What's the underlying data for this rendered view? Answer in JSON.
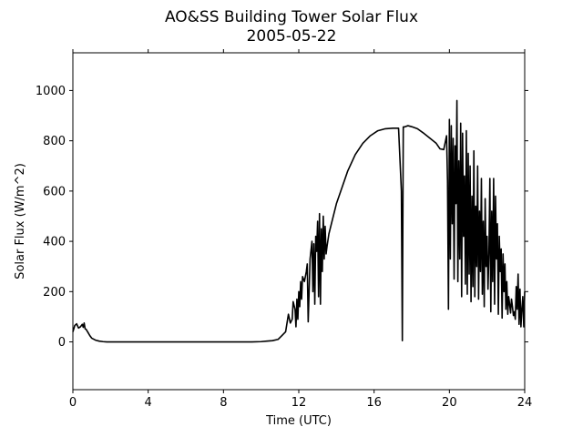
{
  "chart_data": {
    "type": "line",
    "title": "AO&SS Building Tower Solar Flux",
    "subtitle": "2005-05-22",
    "xlabel": "Time (UTC)",
    "ylabel": "Solar Flux (W/m^2)",
    "xlim": [
      0,
      24
    ],
    "ylim": [
      -190,
      1150
    ],
    "xticks": [
      0,
      4,
      8,
      12,
      16,
      20,
      24
    ],
    "yticks": [
      0,
      200,
      400,
      600,
      800,
      1000
    ],
    "grid": false,
    "legend": "none",
    "series": [
      {
        "color": "#000000",
        "x": [
          0.0,
          0.1,
          0.2,
          0.3,
          0.4,
          0.5,
          0.55,
          0.6,
          0.65,
          0.7,
          0.8,
          0.9,
          1.0,
          1.2,
          1.4,
          1.6,
          1.8,
          2.0,
          3.0,
          4.0,
          5.0,
          6.0,
          7.0,
          8.0,
          9.0,
          9.5,
          10.0,
          10.3,
          10.6,
          10.9,
          11.1,
          11.3,
          11.45,
          11.55,
          11.65,
          11.7,
          11.8,
          11.85,
          11.9,
          11.95,
          12.0,
          12.05,
          12.1,
          12.15,
          12.2,
          12.3,
          12.4,
          12.45,
          12.5,
          12.6,
          12.7,
          12.75,
          12.8,
          12.85,
          12.9,
          12.95,
          13.0,
          13.05,
          13.1,
          13.15,
          13.2,
          13.25,
          13.3,
          13.35,
          13.4,
          13.45,
          13.5,
          13.6,
          13.8,
          14.0,
          14.3,
          14.6,
          15.0,
          15.4,
          15.8,
          16.2,
          16.6,
          17.0,
          17.3,
          17.45,
          17.5,
          17.55,
          17.6,
          17.8,
          18.0,
          18.3,
          18.6,
          19.0,
          19.3,
          19.5,
          19.7,
          19.85,
          19.9,
          19.95,
          20.0,
          20.05,
          20.1,
          20.15,
          20.2,
          20.25,
          20.3,
          20.35,
          20.4,
          20.45,
          20.5,
          20.55,
          20.6,
          20.65,
          20.7,
          20.75,
          20.8,
          20.85,
          20.9,
          20.95,
          21.0,
          21.05,
          21.1,
          21.15,
          21.2,
          21.25,
          21.3,
          21.35,
          21.4,
          21.45,
          21.5,
          21.55,
          21.6,
          21.65,
          21.7,
          21.75,
          21.8,
          21.85,
          21.9,
          21.95,
          22.0,
          22.05,
          22.1,
          22.15,
          22.2,
          22.25,
          22.3,
          22.35,
          22.4,
          22.45,
          22.5,
          22.55,
          22.6,
          22.65,
          22.7,
          22.75,
          22.8,
          22.85,
          22.9,
          22.95,
          23.0,
          23.05,
          23.1,
          23.15,
          23.2,
          23.25,
          23.3,
          23.35,
          23.4,
          23.45,
          23.5,
          23.55,
          23.6,
          23.65,
          23.7,
          23.75,
          23.8,
          23.85,
          23.9,
          23.95,
          24.0
        ],
        "y": [
          40,
          65,
          72,
          55,
          60,
          70,
          58,
          75,
          52,
          50,
          38,
          25,
          15,
          7,
          3,
          1,
          0,
          0,
          0,
          0,
          0,
          0,
          0,
          0,
          0,
          0,
          1,
          3,
          5,
          10,
          25,
          40,
          110,
          75,
          90,
          160,
          130,
          60,
          170,
          90,
          200,
          140,
          240,
          170,
          260,
          240,
          280,
          310,
          80,
          330,
          400,
          200,
          390,
          150,
          420,
          360,
          480,
          180,
          510,
          150,
          450,
          280,
          500,
          330,
          460,
          350,
          380,
          430,
          490,
          550,
          615,
          680,
          745,
          790,
          820,
          840,
          848,
          850,
          850,
          600,
          5,
          855,
          855,
          860,
          856,
          848,
          832,
          808,
          790,
          768,
          765,
          820,
          640,
          130,
          885,
          330,
          860,
          470,
          810,
          250,
          780,
          550,
          960,
          240,
          720,
          330,
          870,
          180,
          830,
          420,
          660,
          230,
          840,
          190,
          750,
          270,
          700,
          160,
          580,
          220,
          760,
          180,
          540,
          300,
          700,
          170,
          520,
          280,
          650,
          190,
          480,
          140,
          570,
          300,
          420,
          210,
          350,
          650,
          120,
          520,
          240,
          650,
          150,
          580,
          330,
          470,
          110,
          420,
          280,
          370,
          95,
          350,
          200,
          310,
          130,
          240,
          110,
          180,
          150,
          115,
          170,
          140,
          105,
          120,
          90,
          220,
          130,
          270,
          70,
          210,
          60,
          130,
          180,
          60,
          200
        ]
      }
    ]
  }
}
